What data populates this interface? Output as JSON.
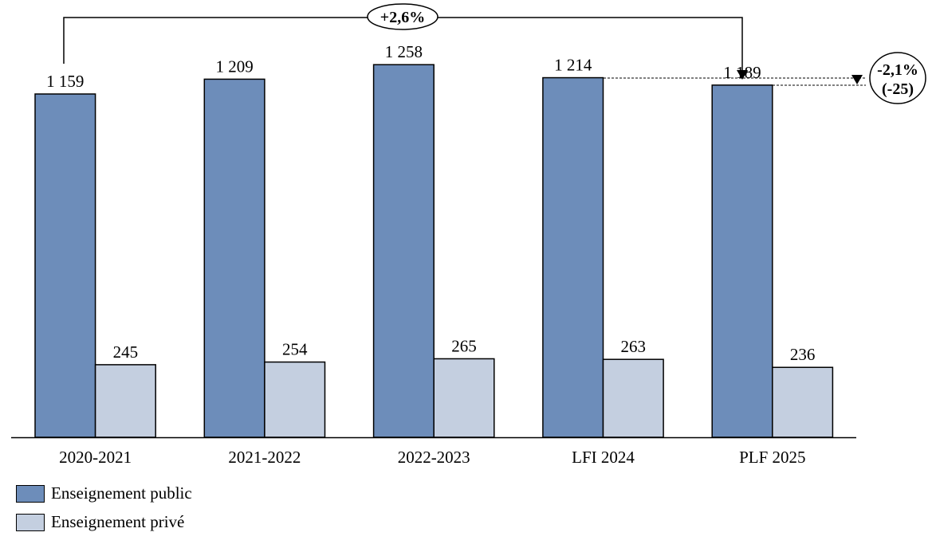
{
  "chart_data": {
    "type": "bar",
    "categories": [
      "2020-2021",
      "2021-2022",
      "2022-2023",
      "LFI 2024",
      "PLF 2025"
    ],
    "series": [
      {
        "name": "Enseignement public",
        "values": [
          1159,
          1209,
          1258,
          1214,
          1189
        ],
        "labels": [
          "1 159",
          "1 209",
          "1 258",
          "1 214",
          "1 189"
        ],
        "color": "#6d8dba"
      },
      {
        "name": "Enseignement privé",
        "values": [
          245,
          254,
          265,
          263,
          236
        ],
        "labels": [
          "245",
          "254",
          "265",
          "263",
          "236"
        ],
        "color": "#c4cfe0"
      }
    ],
    "ylim": [
      0,
      1300
    ],
    "grid": false,
    "legend_position": "bottom-left",
    "annotations": {
      "growth_total": "+2,6%",
      "change_last_pct": "-2,1%",
      "change_last_abs": "(-25)"
    }
  }
}
